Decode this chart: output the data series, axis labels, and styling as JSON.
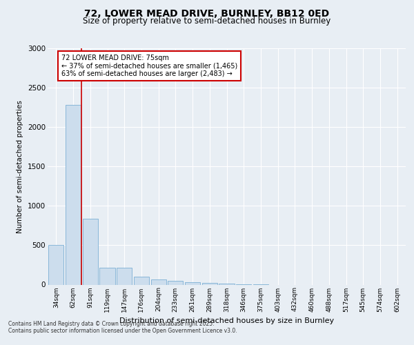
{
  "title1": "72, LOWER MEAD DRIVE, BURNLEY, BB12 0ED",
  "title2": "Size of property relative to semi-detached houses in Burnley",
  "xlabel": "Distribution of semi-detached houses by size in Burnley",
  "ylabel": "Number of semi-detached properties",
  "categories": [
    "34sqm",
    "62sqm",
    "91sqm",
    "119sqm",
    "147sqm",
    "176sqm",
    "204sqm",
    "233sqm",
    "261sqm",
    "289sqm",
    "318sqm",
    "346sqm",
    "375sqm",
    "403sqm",
    "432sqm",
    "460sqm",
    "488sqm",
    "517sqm",
    "545sqm",
    "574sqm",
    "602sqm"
  ],
  "values": [
    500,
    2280,
    840,
    215,
    215,
    100,
    70,
    45,
    30,
    20,
    10,
    5,
    2,
    0,
    0,
    0,
    0,
    0,
    0,
    0,
    0
  ],
  "bar_color": "#ccdded",
  "bar_edge_color": "#7bafd4",
  "vline_x": 1.5,
  "vline_color": "#cc0000",
  "annotation_box_text": "72 LOWER MEAD DRIVE: 75sqm\n← 37% of semi-detached houses are smaller (1,465)\n63% of semi-detached houses are larger (2,483) →",
  "annotation_box_color": "#cc0000",
  "annotation_bg": "white",
  "ylim": [
    0,
    3000
  ],
  "yticks": [
    0,
    500,
    1000,
    1500,
    2000,
    2500,
    3000
  ],
  "footer1": "Contains HM Land Registry data © Crown copyright and database right 2025.",
  "footer2": "Contains public sector information licensed under the Open Government Licence v3.0.",
  "bg_color": "#e8eef4",
  "plot_bg_color": "#e8eef4"
}
